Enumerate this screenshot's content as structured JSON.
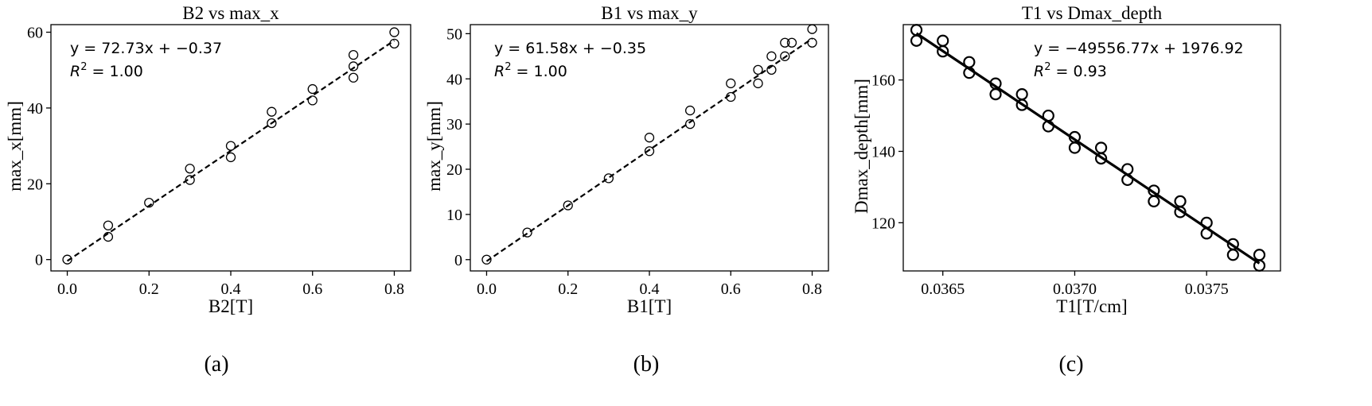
{
  "chart_data": [
    {
      "type": "scatter",
      "panel_label": "(a)",
      "title": "B2 vs max_x",
      "xlabel": "B2[T]",
      "ylabel": "max_x[mm]",
      "xlim": [
        -0.04,
        0.84
      ],
      "ylim": [
        -3,
        62
      ],
      "xticks": [
        0.0,
        0.2,
        0.4,
        0.6,
        0.8
      ],
      "xtick_labels": [
        "0.0",
        "0.2",
        "0.4",
        "0.6",
        "0.8"
      ],
      "yticks": [
        0,
        20,
        40,
        60
      ],
      "ytick_labels": [
        "0",
        "20",
        "40",
        "60"
      ],
      "fit": {
        "slope": 72.73,
        "intercept": -0.37,
        "style": "dashed",
        "x_range": [
          0.0,
          0.8
        ]
      },
      "annotation": {
        "equation": "y = 72.73x + −0.37",
        "r2": "R² = 1.00",
        "r2_prefix": "R",
        "r2_value": " = 1.00",
        "placement": "top-left"
      },
      "points": {
        "x": [
          0.0,
          0.1,
          0.1,
          0.2,
          0.3,
          0.3,
          0.4,
          0.4,
          0.5,
          0.5,
          0.6,
          0.6,
          0.7,
          0.7,
          0.7,
          0.8,
          0.8
        ],
        "y": [
          0,
          6,
          9,
          15,
          21,
          24,
          27,
          30,
          36,
          39,
          42,
          45,
          48,
          51,
          54,
          57,
          60
        ]
      },
      "grid": false
    },
    {
      "type": "scatter",
      "panel_label": "(b)",
      "title": "B1 vs max_y",
      "xlabel": "B1[T]",
      "ylabel": "max_y[mm]",
      "xlim": [
        -0.04,
        0.84
      ],
      "ylim": [
        -2.5,
        52
      ],
      "xticks": [
        0.0,
        0.2,
        0.4,
        0.6,
        0.8
      ],
      "xtick_labels": [
        "0.0",
        "0.2",
        "0.4",
        "0.6",
        "0.8"
      ],
      "yticks": [
        0,
        10,
        20,
        30,
        40,
        50
      ],
      "ytick_labels": [
        "0",
        "10",
        "20",
        "30",
        "40",
        "50"
      ],
      "fit": {
        "slope": 61.58,
        "intercept": -0.35,
        "style": "dashed",
        "x_range": [
          0.0,
          0.8
        ]
      },
      "annotation": {
        "equation": "y = 61.58x + −0.35",
        "r2": "R² = 1.00",
        "r2_prefix": "R",
        "r2_value": " = 1.00",
        "placement": "top-left"
      },
      "points": {
        "x": [
          0.0,
          0.1,
          0.2,
          0.3,
          0.4,
          0.4,
          0.5,
          0.5,
          0.6,
          0.6,
          0.667,
          0.667,
          0.7,
          0.7,
          0.733,
          0.733,
          0.75,
          0.8,
          0.8
        ],
        "y": [
          0,
          6,
          12,
          18,
          24,
          27,
          30,
          33,
          36,
          39,
          39,
          42,
          42,
          45,
          45,
          48,
          48,
          48,
          51
        ]
      },
      "grid": false
    },
    {
      "type": "scatter",
      "panel_label": "(c)",
      "title": "T1 vs Dmax_depth",
      "xlabel": "T1[T/cm]",
      "ylabel": "Dmax_depth[mm]",
      "xlim": [
        0.03635,
        0.03778
      ],
      "ylim": [
        106.5,
        175.5
      ],
      "xticks": [
        0.0365,
        0.037,
        0.0375
      ],
      "xtick_labels": [
        "0.0365",
        "0.0370",
        "0.0375"
      ],
      "yticks": [
        120,
        140,
        160
      ],
      "ytick_labels": [
        "120",
        "140",
        "160"
      ],
      "fit": {
        "slope": -49556.77,
        "intercept": 1976.92,
        "style": "solid",
        "x_range": [
          0.0364,
          0.0377
        ]
      },
      "annotation": {
        "equation": "y = −49556.77x + 1976.92",
        "r2": "R² = 0.93",
        "r2_prefix": "R",
        "r2_value": " = 0.93",
        "placement": "top-right"
      },
      "points": {
        "x": [
          0.0364,
          0.0364,
          0.0365,
          0.0365,
          0.0366,
          0.0366,
          0.0367,
          0.0367,
          0.0368,
          0.0368,
          0.0369,
          0.0369,
          0.037,
          0.037,
          0.0371,
          0.0371,
          0.0372,
          0.0372,
          0.0373,
          0.0373,
          0.0374,
          0.0374,
          0.0375,
          0.0375,
          0.0376,
          0.0376,
          0.0377,
          0.0377
        ],
        "y": [
          174,
          171,
          171,
          168,
          165,
          162,
          159,
          156,
          156,
          153,
          150,
          147,
          144,
          141,
          141,
          138,
          135,
          132,
          129,
          126,
          126,
          123,
          120,
          117,
          114,
          111,
          111,
          108
        ]
      },
      "grid": false
    }
  ]
}
